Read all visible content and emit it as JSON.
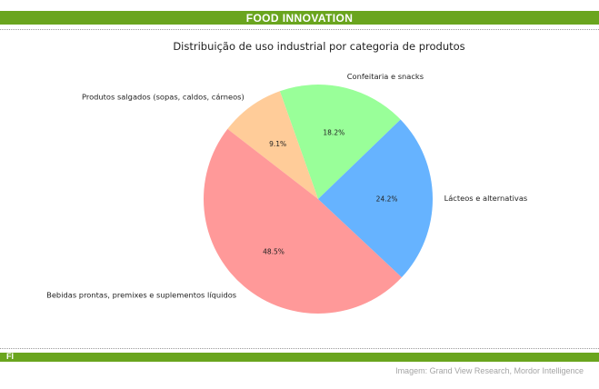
{
  "header": {
    "title": "FOOD INNOVATION"
  },
  "footer": {
    "logo": "FI",
    "credit": "Imagem: Grand View Research, Mordor Intelligence"
  },
  "colors": {
    "brand_green": "#6aa51e"
  },
  "chart_data": {
    "type": "pie",
    "title": "Distribuição de uso industrial por categoria de produtos",
    "slices": [
      {
        "label": "Confeitaria e snacks",
        "value": 18.2,
        "pct_label": "18.2%",
        "color": "#99ff99"
      },
      {
        "label": "Produtos salgados (sopas, caldos, cárneos)",
        "value": 9.1,
        "pct_label": "9.1%",
        "color": "#ffcc99"
      },
      {
        "label": "Bebidas prontas, premixes e suplementos líquidos",
        "value": 48.5,
        "pct_label": "48.5%",
        "color": "#ff9999"
      },
      {
        "label": "Lácteos e alternativas",
        "value": 24.2,
        "pct_label": "24.2%",
        "color": "#66b3ff"
      }
    ]
  }
}
